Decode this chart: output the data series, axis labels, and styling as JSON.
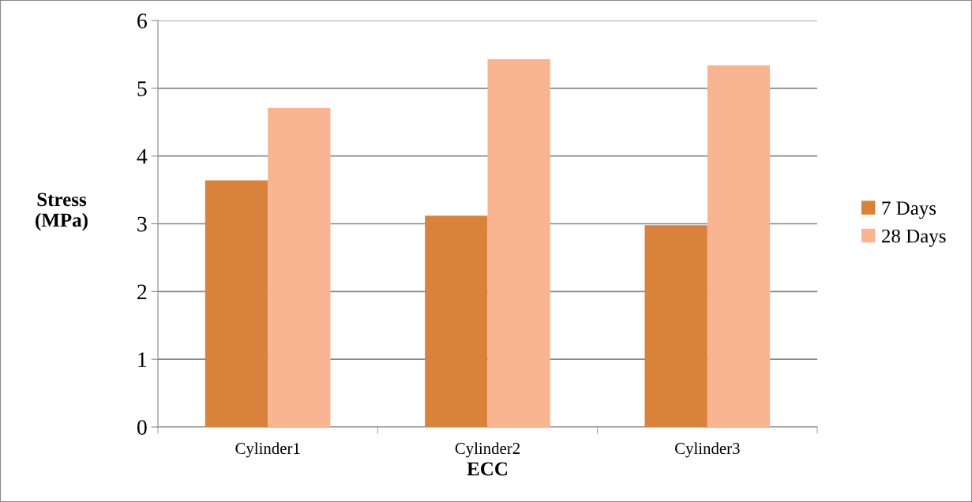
{
  "chart_data": {
    "type": "bar",
    "xlabel": "ECC",
    "ylabel": "Stress\n(MPa)",
    "categories": [
      "Cylinder1",
      "Cylinder2",
      "Cylinder3"
    ],
    "series": [
      {
        "name": "7 Days",
        "color": "#d9823b",
        "values": [
          3.64,
          3.12,
          2.98
        ]
      },
      {
        "name": "28 Days",
        "color": "#f9b592",
        "values": [
          4.71,
          5.43,
          5.34
        ]
      }
    ],
    "ylim": [
      0,
      6
    ],
    "yticks": [
      0,
      1,
      2,
      3,
      4,
      5,
      6
    ],
    "grid": "y",
    "legend": "right"
  }
}
